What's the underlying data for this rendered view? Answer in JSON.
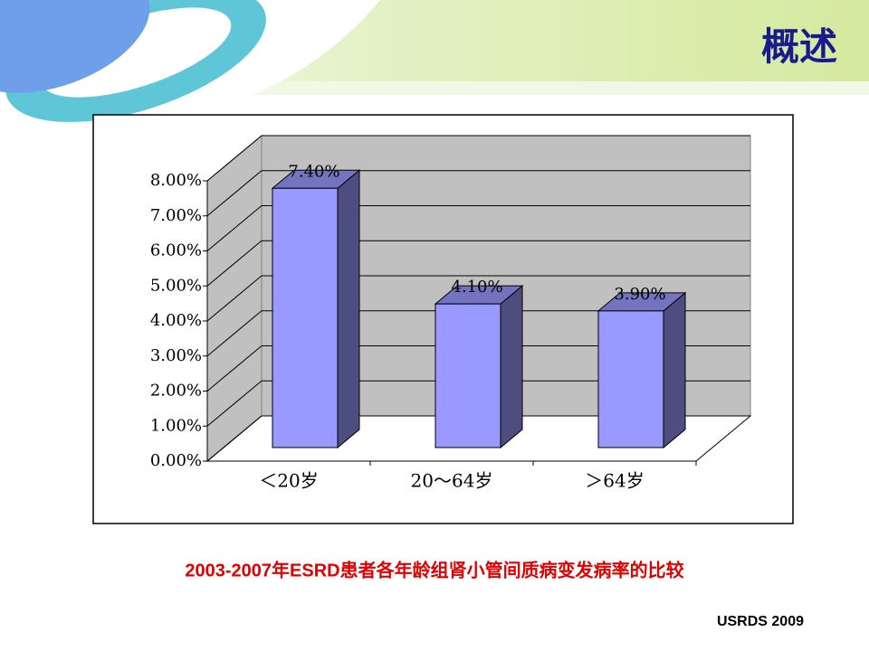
{
  "slide_title": "概述",
  "source": "USRDS 2009",
  "chart_data": {
    "type": "bar",
    "title": "2003-2007年ESRD患者各年龄组肾小管间质病变发病率的比较",
    "categories": [
      "＜20岁",
      "20～64岁",
      "＞64岁"
    ],
    "values": [
      7.4,
      4.1,
      3.9
    ],
    "value_labels": [
      "7.40%",
      "4.10%",
      "3.90%"
    ],
    "color": "#9999ff",
    "ylim": [
      0,
      8
    ],
    "yticks": [
      {
        "value": 0,
        "label": "0.00%"
      },
      {
        "value": 1,
        "label": "1.00%"
      },
      {
        "value": 2,
        "label": "2.00%"
      },
      {
        "value": 3,
        "label": "3.00%"
      },
      {
        "value": 4,
        "label": "4.00%"
      },
      {
        "value": 5,
        "label": "5.00%"
      },
      {
        "value": 6,
        "label": "6.00%"
      },
      {
        "value": 7,
        "label": "7.00%"
      },
      {
        "value": 8,
        "label": "8.00%"
      }
    ],
    "grid": true
  }
}
